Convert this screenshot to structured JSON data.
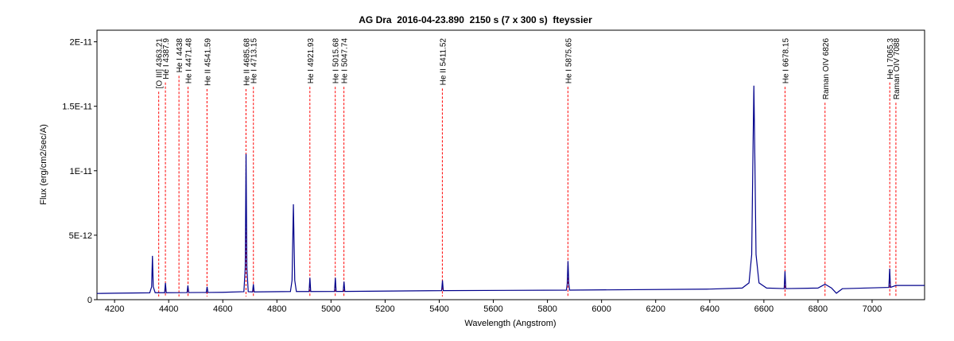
{
  "chart_data": {
    "type": "line",
    "title": "AG Dra  2016-04-23.890  2150 s (7 x 300 s)  fteyssier",
    "x_label": "Wavelength (Angstrom)",
    "y_label": "Flux (erg/cm2/sec/A)",
    "xlim": [
      4135,
      7194
    ],
    "ylim": [
      0,
      2.09e-11
    ],
    "xticks": [
      4200,
      4400,
      4600,
      4800,
      5000,
      5200,
      5400,
      5600,
      5800,
      6000,
      6200,
      6400,
      6600,
      6800,
      7000
    ],
    "yticks": [
      0,
      {
        "value": 5e-12,
        "label": "5E-12"
      },
      {
        "value": 1e-11,
        "label": "1E-11"
      },
      {
        "value": 1.5e-11,
        "label": "1.5E-11"
      },
      {
        "value": 2e-11,
        "label": "2E-11"
      }
    ],
    "x": [
      4135,
      4200,
      4330,
      4337,
      4340,
      4343,
      4350,
      4385,
      4388,
      4391,
      4468,
      4471,
      4474,
      4539,
      4542,
      4545,
      4600,
      4678,
      4683,
      4686,
      4689,
      4694,
      4710,
      4713,
      4716,
      4850,
      4856,
      4861,
      4866,
      4872,
      4919,
      4922,
      4925,
      5013,
      5016,
      5019,
      5045,
      5048,
      5051,
      5409,
      5412,
      5415,
      5870,
      5873,
      5876,
      5879,
      5882,
      6400,
      6520,
      6545,
      6555,
      6560,
      6563,
      6566,
      6571,
      6582,
      6610,
      6675,
      6678,
      6681,
      6800,
      6826,
      6850,
      6868,
      6890,
      7062,
      7065,
      7068,
      7088,
      7194
    ],
    "series": [
      {
        "name": "AG Dra",
        "color": "#00008b",
        "values": [
          4.8e-13,
          5e-13,
          5.3e-13,
          1e-12,
          3.4e-12,
          1e-12,
          5.4e-13,
          5.4e-13,
          1.3e-12,
          5.4e-13,
          5.5e-13,
          1.1e-12,
          5.5e-13,
          5.6e-13,
          1e-12,
          5.6e-13,
          5.7e-13,
          6.2e-13,
          2.5e-12,
          1.13e-11,
          2.5e-12,
          6.2e-13,
          6e-13,
          1.2e-12,
          6e-13,
          6.3e-13,
          1.5e-12,
          7.4e-12,
          1.5e-12,
          6.3e-13,
          6.3e-13,
          1.7e-12,
          6.3e-13,
          6.4e-13,
          1.7e-12,
          6.4e-13,
          6.4e-13,
          1.4e-12,
          6.4e-13,
          7e-13,
          1.5e-12,
          7e-13,
          7.4e-13,
          1.2e-12,
          3e-12,
          1.2e-12,
          7.4e-13,
          8.2e-13,
          9e-13,
          1.3e-12,
          3.5e-12,
          1.2e-11,
          1.66e-11,
          1.2e-11,
          3.5e-12,
          1.3e-12,
          9e-13,
          8.6e-13,
          2.2e-12,
          8.6e-13,
          9e-13,
          1.2e-12,
          9e-13,
          5e-13,
          8.5e-13,
          9.5e-13,
          2.4e-12,
          9.5e-13,
          1.1e-12,
          1.1e-12
        ]
      }
    ],
    "annotation_color": "#ff0000",
    "annotations": [
      {
        "text": "[O III] 4363.21",
        "x": 4363.21
      },
      {
        "text": "He I 4387.9",
        "x": 4387.9
      },
      {
        "text": "He I 4438",
        "x": 4438
      },
      {
        "text": "He I 4471.48",
        "x": 4471.48
      },
      {
        "text": "He II 4541.59",
        "x": 4541.59
      },
      {
        "text": "He II 4685.68",
        "x": 4685.68
      },
      {
        "text": "He I 4713.15",
        "x": 4713.15
      },
      {
        "text": "He I 4921.93",
        "x": 4921.93
      },
      {
        "text": "He I 5015.68",
        "x": 5015.68
      },
      {
        "text": "He I 5047.74",
        "x": 5047.74
      },
      {
        "text": "He II 5411.52",
        "x": 5411.52
      },
      {
        "text": "He I 5875.65",
        "x": 5875.65
      },
      {
        "text": "He I 6678.15",
        "x": 6678.15
      },
      {
        "text": "Raman OIV 6826",
        "x": 6826
      },
      {
        "text": "He I 7065.3",
        "x": 7065.3
      },
      {
        "text": "Raman OIV 7088",
        "x": 7088
      }
    ]
  }
}
